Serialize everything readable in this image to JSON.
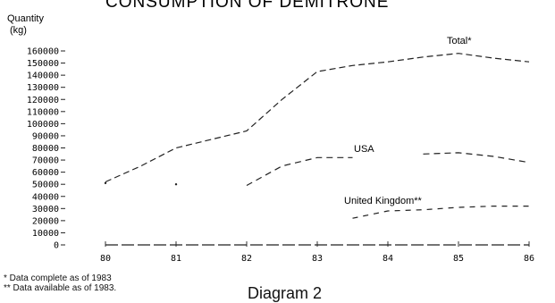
{
  "chart_data": {
    "type": "line",
    "title": "CONSUMPTION OF DEMITRONE",
    "ylabel_line1": "Quantity",
    "ylabel_line2": "(kg)",
    "y_ticks": [
      "160000",
      "150000",
      "140000",
      "130000",
      "120000",
      "110000",
      "100000",
      "90000",
      "80000",
      "70000",
      "60000",
      "50000",
      "40000",
      "30000",
      "20000",
      "10000",
      "0"
    ],
    "x_tick_labels": [
      "80",
      "81",
      "82",
      "83",
      "84",
      "85",
      "86"
    ],
    "x": [
      1980,
      1980.5,
      1981,
      1981.5,
      1982,
      1982.5,
      1983,
      1983.5,
      1984,
      1984.5,
      1985,
      1985.5,
      1986
    ],
    "xlim": [
      1980,
      1986
    ],
    "ylim": [
      0,
      160000
    ],
    "series": [
      {
        "name": "Total*",
        "values": [
          52000,
          65000,
          80000,
          87000,
          94000,
          120000,
          143000,
          148000,
          151000,
          155000,
          158000,
          154000,
          151000
        ]
      },
      {
        "name": "USA",
        "values": [
          51000,
          null,
          50000,
          null,
          49000,
          65000,
          72000,
          72000,
          null,
          75000,
          76000,
          73000,
          68000
        ]
      },
      {
        "name": "United Kingdom**",
        "values": [
          null,
          null,
          null,
          null,
          null,
          null,
          null,
          22000,
          28000,
          29000,
          31000,
          32000,
          32000
        ]
      },
      {
        "name": "",
        "values": [
          0,
          0,
          0,
          0,
          0,
          0,
          0,
          0,
          0,
          0,
          0,
          0,
          0
        ]
      }
    ],
    "grid": false
  },
  "footnotes": {
    "note1": "* Data complete as of 1983",
    "note2": "** Data available as of 1983."
  },
  "caption": "Diagram 2"
}
